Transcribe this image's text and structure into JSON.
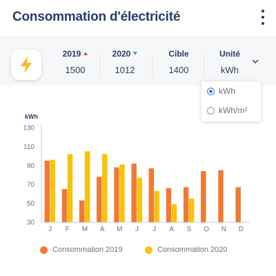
{
  "title": "Consommation d'électricité",
  "stats": [
    {
      "label": "2019",
      "value": "1500",
      "trend": "up"
    },
    {
      "label": "2020",
      "value": "1012",
      "trend": "down"
    },
    {
      "label": "Cible",
      "value": "1400"
    },
    {
      "label": "Unité",
      "value": "kWh"
    }
  ],
  "unit_options": [
    {
      "label": "kWh",
      "selected": true
    },
    {
      "label": "kWh/m²",
      "selected": false
    }
  ],
  "colors": {
    "series_2019": "#f07a35",
    "series_2020": "#f9c20c",
    "trend_up": "#e34b4b",
    "trend_down": "#2bb08f",
    "accent": "#4a6fd6"
  },
  "chart_data": {
    "type": "bar",
    "ylabel": "kWh",
    "ylim": [
      30,
      130
    ],
    "yticks": [
      30,
      50,
      70,
      90,
      110,
      130
    ],
    "categories": [
      "J",
      "F",
      "M",
      "A",
      "M",
      "J",
      "J",
      "A",
      "S",
      "O",
      "N",
      "D"
    ],
    "series": [
      {
        "name": "Consommation 2019",
        "values": [
          95,
          65,
          53,
          78,
          88,
          92,
          87,
          66,
          67,
          84,
          85,
          67
        ]
      },
      {
        "name": "Consommation 2020",
        "values": [
          96,
          102,
          105,
          102,
          91,
          77,
          63,
          49,
          55,
          null,
          null,
          null
        ]
      }
    ],
    "grid": false,
    "legend": "bottom"
  }
}
